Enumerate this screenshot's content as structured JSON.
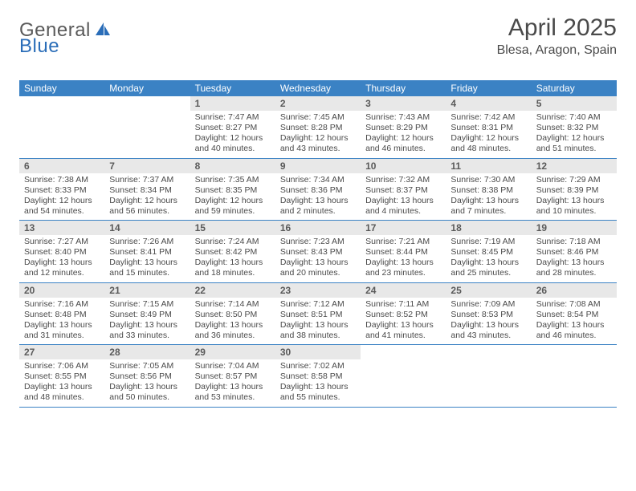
{
  "logo": {
    "word1": "General",
    "word2": "Blue"
  },
  "title": "April 2025",
  "location": "Blesa, Aragon, Spain",
  "colors": {
    "header_bg": "#3b82c4",
    "header_text": "#ffffff",
    "daynum_bg": "#e8e8e8",
    "rule": "#3b82c4",
    "text": "#4a4a4a"
  },
  "daysOfWeek": [
    "Sunday",
    "Monday",
    "Tuesday",
    "Wednesday",
    "Thursday",
    "Friday",
    "Saturday"
  ],
  "weeks": [
    [
      {
        "n": "",
        "sunrise": "",
        "sunset": "",
        "daylight": ""
      },
      {
        "n": "",
        "sunrise": "",
        "sunset": "",
        "daylight": ""
      },
      {
        "n": "1",
        "sunrise": "Sunrise: 7:47 AM",
        "sunset": "Sunset: 8:27 PM",
        "daylight": "Daylight: 12 hours and 40 minutes."
      },
      {
        "n": "2",
        "sunrise": "Sunrise: 7:45 AM",
        "sunset": "Sunset: 8:28 PM",
        "daylight": "Daylight: 12 hours and 43 minutes."
      },
      {
        "n": "3",
        "sunrise": "Sunrise: 7:43 AM",
        "sunset": "Sunset: 8:29 PM",
        "daylight": "Daylight: 12 hours and 46 minutes."
      },
      {
        "n": "4",
        "sunrise": "Sunrise: 7:42 AM",
        "sunset": "Sunset: 8:31 PM",
        "daylight": "Daylight: 12 hours and 48 minutes."
      },
      {
        "n": "5",
        "sunrise": "Sunrise: 7:40 AM",
        "sunset": "Sunset: 8:32 PM",
        "daylight": "Daylight: 12 hours and 51 minutes."
      }
    ],
    [
      {
        "n": "6",
        "sunrise": "Sunrise: 7:38 AM",
        "sunset": "Sunset: 8:33 PM",
        "daylight": "Daylight: 12 hours and 54 minutes."
      },
      {
        "n": "7",
        "sunrise": "Sunrise: 7:37 AM",
        "sunset": "Sunset: 8:34 PM",
        "daylight": "Daylight: 12 hours and 56 minutes."
      },
      {
        "n": "8",
        "sunrise": "Sunrise: 7:35 AM",
        "sunset": "Sunset: 8:35 PM",
        "daylight": "Daylight: 12 hours and 59 minutes."
      },
      {
        "n": "9",
        "sunrise": "Sunrise: 7:34 AM",
        "sunset": "Sunset: 8:36 PM",
        "daylight": "Daylight: 13 hours and 2 minutes."
      },
      {
        "n": "10",
        "sunrise": "Sunrise: 7:32 AM",
        "sunset": "Sunset: 8:37 PM",
        "daylight": "Daylight: 13 hours and 4 minutes."
      },
      {
        "n": "11",
        "sunrise": "Sunrise: 7:30 AM",
        "sunset": "Sunset: 8:38 PM",
        "daylight": "Daylight: 13 hours and 7 minutes."
      },
      {
        "n": "12",
        "sunrise": "Sunrise: 7:29 AM",
        "sunset": "Sunset: 8:39 PM",
        "daylight": "Daylight: 13 hours and 10 minutes."
      }
    ],
    [
      {
        "n": "13",
        "sunrise": "Sunrise: 7:27 AM",
        "sunset": "Sunset: 8:40 PM",
        "daylight": "Daylight: 13 hours and 12 minutes."
      },
      {
        "n": "14",
        "sunrise": "Sunrise: 7:26 AM",
        "sunset": "Sunset: 8:41 PM",
        "daylight": "Daylight: 13 hours and 15 minutes."
      },
      {
        "n": "15",
        "sunrise": "Sunrise: 7:24 AM",
        "sunset": "Sunset: 8:42 PM",
        "daylight": "Daylight: 13 hours and 18 minutes."
      },
      {
        "n": "16",
        "sunrise": "Sunrise: 7:23 AM",
        "sunset": "Sunset: 8:43 PM",
        "daylight": "Daylight: 13 hours and 20 minutes."
      },
      {
        "n": "17",
        "sunrise": "Sunrise: 7:21 AM",
        "sunset": "Sunset: 8:44 PM",
        "daylight": "Daylight: 13 hours and 23 minutes."
      },
      {
        "n": "18",
        "sunrise": "Sunrise: 7:19 AM",
        "sunset": "Sunset: 8:45 PM",
        "daylight": "Daylight: 13 hours and 25 minutes."
      },
      {
        "n": "19",
        "sunrise": "Sunrise: 7:18 AM",
        "sunset": "Sunset: 8:46 PM",
        "daylight": "Daylight: 13 hours and 28 minutes."
      }
    ],
    [
      {
        "n": "20",
        "sunrise": "Sunrise: 7:16 AM",
        "sunset": "Sunset: 8:48 PM",
        "daylight": "Daylight: 13 hours and 31 minutes."
      },
      {
        "n": "21",
        "sunrise": "Sunrise: 7:15 AM",
        "sunset": "Sunset: 8:49 PM",
        "daylight": "Daylight: 13 hours and 33 minutes."
      },
      {
        "n": "22",
        "sunrise": "Sunrise: 7:14 AM",
        "sunset": "Sunset: 8:50 PM",
        "daylight": "Daylight: 13 hours and 36 minutes."
      },
      {
        "n": "23",
        "sunrise": "Sunrise: 7:12 AM",
        "sunset": "Sunset: 8:51 PM",
        "daylight": "Daylight: 13 hours and 38 minutes."
      },
      {
        "n": "24",
        "sunrise": "Sunrise: 7:11 AM",
        "sunset": "Sunset: 8:52 PM",
        "daylight": "Daylight: 13 hours and 41 minutes."
      },
      {
        "n": "25",
        "sunrise": "Sunrise: 7:09 AM",
        "sunset": "Sunset: 8:53 PM",
        "daylight": "Daylight: 13 hours and 43 minutes."
      },
      {
        "n": "26",
        "sunrise": "Sunrise: 7:08 AM",
        "sunset": "Sunset: 8:54 PM",
        "daylight": "Daylight: 13 hours and 46 minutes."
      }
    ],
    [
      {
        "n": "27",
        "sunrise": "Sunrise: 7:06 AM",
        "sunset": "Sunset: 8:55 PM",
        "daylight": "Daylight: 13 hours and 48 minutes."
      },
      {
        "n": "28",
        "sunrise": "Sunrise: 7:05 AM",
        "sunset": "Sunset: 8:56 PM",
        "daylight": "Daylight: 13 hours and 50 minutes."
      },
      {
        "n": "29",
        "sunrise": "Sunrise: 7:04 AM",
        "sunset": "Sunset: 8:57 PM",
        "daylight": "Daylight: 13 hours and 53 minutes."
      },
      {
        "n": "30",
        "sunrise": "Sunrise: 7:02 AM",
        "sunset": "Sunset: 8:58 PM",
        "daylight": "Daylight: 13 hours and 55 minutes."
      },
      {
        "n": "",
        "sunrise": "",
        "sunset": "",
        "daylight": ""
      },
      {
        "n": "",
        "sunrise": "",
        "sunset": "",
        "daylight": ""
      },
      {
        "n": "",
        "sunrise": "",
        "sunset": "",
        "daylight": ""
      }
    ]
  ]
}
